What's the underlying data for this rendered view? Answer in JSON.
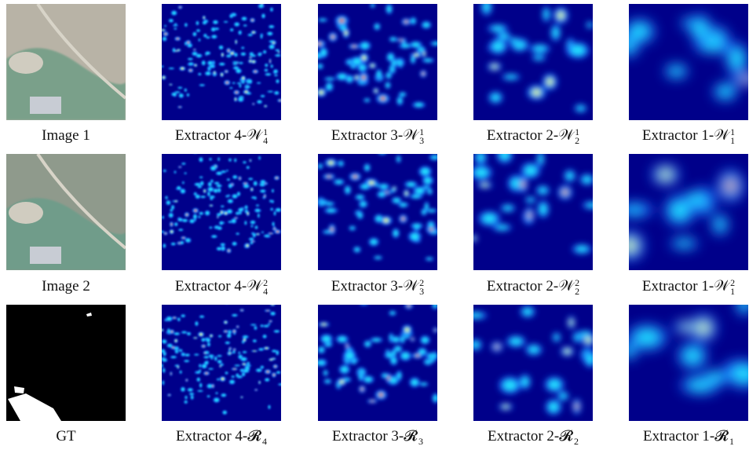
{
  "grid": [
    [
      {
        "text": "Image 1"
      },
      {
        "text": "Extractor 4-",
        "symbol": "𝒲",
        "sub": "4",
        "sup": "1"
      },
      {
        "text": "Extractor 3-",
        "symbol": "𝒲",
        "sub": "3",
        "sup": "1"
      },
      {
        "text": "Extractor 2-",
        "symbol": "𝒲",
        "sub": "2",
        "sup": "1"
      },
      {
        "text": "Extractor 1-",
        "symbol": "𝒲",
        "sub": "1",
        "sup": "1"
      }
    ],
    [
      {
        "text": "Image 2"
      },
      {
        "text": "Extractor 4-",
        "symbol": "𝒲",
        "sub": "4",
        "sup": "2"
      },
      {
        "text": "Extractor 3-",
        "symbol": "𝒲",
        "sub": "3",
        "sup": "2"
      },
      {
        "text": "Extractor 2-",
        "symbol": "𝒲",
        "sub": "2",
        "sup": "2"
      },
      {
        "text": "Extractor 1-",
        "symbol": "𝒲",
        "sub": "1",
        "sup": "2"
      }
    ],
    [
      {
        "text": "GT"
      },
      {
        "text": "Extractor 4-",
        "symbol": "𝓡",
        "sub": "4"
      },
      {
        "text": "Extractor 3-",
        "symbol": "𝓡",
        "sub": "3"
      },
      {
        "text": "Extractor 2-",
        "symbol": "𝓡",
        "sub": "2"
      },
      {
        "text": "Extractor 1-",
        "symbol": "𝓡",
        "sub": "1"
      }
    ]
  ]
}
